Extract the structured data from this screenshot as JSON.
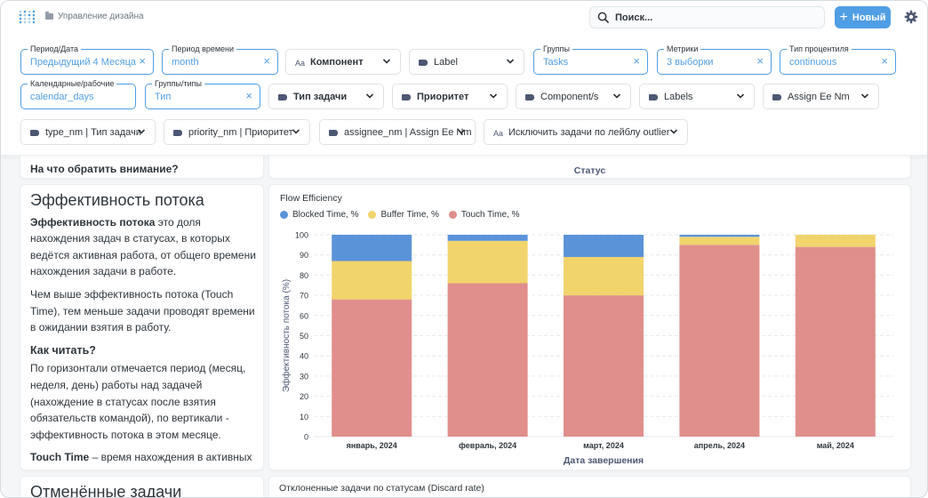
{
  "header": {
    "breadcrumb": "Управление дизайна",
    "search_placeholder": "Поиск...",
    "new_button": "Новый"
  },
  "filters": {
    "row1": [
      {
        "label": "Период/Дата",
        "value": "Предыдущий 4 Месяца"
      },
      {
        "label": "Период времени",
        "value": "month"
      },
      {
        "text": "Компонент",
        "icon": "Aa"
      },
      {
        "text": "Label"
      },
      {
        "label": "Группы",
        "value": "Tasks"
      },
      {
        "label": "Метрики",
        "value": "3 выборки"
      },
      {
        "label": "Тип процентиля",
        "value": "continuous"
      }
    ],
    "row2": [
      {
        "label": "Календарные/рабочие",
        "value": "calendar_days"
      },
      {
        "label": "Группы/типы",
        "value": "Тип"
      },
      {
        "text": "Тип задачи"
      },
      {
        "text": "Приоритет"
      },
      {
        "text": "Component/s"
      },
      {
        "text": "Labels"
      },
      {
        "text": "Assign Ee Nm"
      }
    ],
    "row3": [
      {
        "text": "type_nm | Тип задачи"
      },
      {
        "text": "priority_nm | Приоритет"
      },
      {
        "text": "assignee_nm | Assign Ee Nm"
      },
      {
        "text": "Исключить задачи по лейблу outlier",
        "icon": "Aa"
      }
    ]
  },
  "top_cards": {
    "left_title": "На что обратить внимание?",
    "right_axis_label": "Статус"
  },
  "flow_text": {
    "heading": "Эффективность потока",
    "p1_bold": "Эффективность потока",
    "p1_rest": " это доля нахождения задач в статусах, в которых ведётся активная работа, от общего времени нахождения задачи в работе.",
    "p2": "Чем выше эффективность потока (Touch Time), тем меньше задачи проводят времени в ожидании взятия в работу.",
    "how_heading": "Как читать?",
    "p3": "По горизонтали отмечается период (месяц, неделя, день) работы над задачей (нахождение в статусах после взятия обязательств командой), по вертикали - эффективность потока в этом месяце.",
    "p4_bold": "Touch Time",
    "p4_rest": " – время нахождения в активных статусах (например, In Progress)"
  },
  "bottom": {
    "left_heading": "Отменённые задачи",
    "right_title": "Отклоненные задачи по статусам (Discard rate)"
  },
  "colors": {
    "blocked": "#5b93d9",
    "buffer": "#f1d46c",
    "touch": "#e08f8c",
    "accent": "#509ee3"
  },
  "chart_data": {
    "type": "bar",
    "stacked": true,
    "title": "Flow Efficiency",
    "categories": [
      "январь, 2024",
      "февраль, 2024",
      "март, 2024",
      "апрель, 2024",
      "май, 2024"
    ],
    "series": [
      {
        "name": "Touch Time, %",
        "values": [
          68,
          76,
          70,
          95,
          94
        ]
      },
      {
        "name": "Buffer Time, %",
        "values": [
          19,
          21,
          19,
          4,
          6
        ]
      },
      {
        "name": "Blocked Time, %",
        "values": [
          13,
          3,
          11,
          1,
          0
        ]
      }
    ],
    "legend": [
      "Blocked Time, %",
      "Buffer Time, %",
      "Touch Time, %"
    ],
    "xlabel": "Дата завершения",
    "ylabel": "Эффективность потока (%)",
    "ylim": [
      0,
      100
    ],
    "yticks": [
      "0",
      "10",
      "20",
      "30",
      "40",
      "50",
      "60",
      "70",
      "80",
      "90",
      "100"
    ],
    "grid": true
  }
}
